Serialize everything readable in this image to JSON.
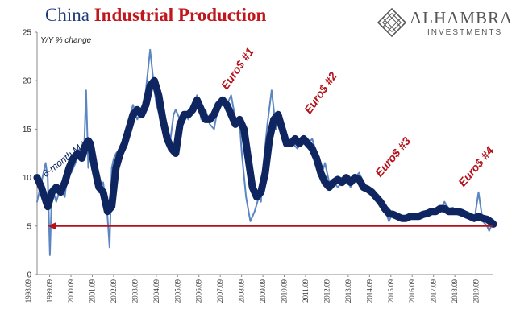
{
  "header": {
    "title_part1": "China",
    "title_part2": "Industrial Production"
  },
  "logo": {
    "name": "ALHAMBRA",
    "subtitle": "INVESTMENTS",
    "icon": "diamond-lattice-icon"
  },
  "chart_data": {
    "type": "line",
    "title": "China Industrial Production",
    "ylabel": "Y/Y % change",
    "xlabel": "",
    "ylim": [
      0,
      25
    ],
    "yticks": [
      0,
      5,
      10,
      15,
      20,
      25
    ],
    "xlim": [
      1998.5,
      2019.9
    ],
    "xtick_labels": [
      "1998.09",
      "1999.09",
      "2000.09",
      "2001.09",
      "2002.09",
      "2003.09",
      "2004.09",
      "2005.09",
      "2006.09",
      "2007.09",
      "2008.09",
      "2009.09",
      "2010.09",
      "2011.09",
      "2012.09",
      "2013.09",
      "2014.09",
      "2015.09",
      "2016.09",
      "2017.09",
      "2018.09",
      "2019.09"
    ],
    "grid": false,
    "colors": {
      "monthly": "#5b86c2",
      "ma": "#0e2560",
      "reference": "#b3121a"
    },
    "series": [
      {
        "key": "monthly",
        "x": [
          1998.5,
          1998.7,
          1998.9,
          1999.0,
          1999.1,
          1999.2,
          1999.4,
          1999.6,
          1999.8,
          2000.0,
          2000.1,
          2000.3,
          2000.5,
          2000.7,
          2000.8,
          2000.9,
          2001.0,
          2001.2,
          2001.4,
          2001.6,
          2001.8,
          2001.9,
          2002.0,
          2002.1,
          2002.2,
          2002.4,
          2002.6,
          2002.8,
          2003.0,
          2003.2,
          2003.4,
          2003.6,
          2003.8,
          2004.0,
          2004.1,
          2004.3,
          2004.5,
          2004.7,
          2004.9,
          2005.0,
          2005.2,
          2005.4,
          2005.6,
          2005.8,
          2006.0,
          2006.2,
          2006.4,
          2006.6,
          2006.8,
          2007.0,
          2007.2,
          2007.4,
          2007.6,
          2007.8,
          2008.0,
          2008.1,
          2008.3,
          2008.5,
          2008.7,
          2008.9,
          2009.0,
          2009.1,
          2009.3,
          2009.5,
          2009.7,
          2009.9,
          2010.0,
          2010.1,
          2010.3,
          2010.5,
          2010.7,
          2010.9,
          2011.0,
          2011.2,
          2011.4,
          2011.6,
          2011.8,
          2012.0,
          2012.2,
          2012.4,
          2012.6,
          2012.8,
          2013.0,
          2013.2,
          2013.4,
          2013.6,
          2013.8,
          2014.0,
          2014.2,
          2014.4,
          2014.6,
          2014.8,
          2015.0,
          2015.2,
          2015.4,
          2015.6,
          2015.8,
          2016.0,
          2016.2,
          2016.4,
          2016.6,
          2016.8,
          2017.0,
          2017.2,
          2017.4,
          2017.6,
          2017.8,
          2018.0,
          2018.2,
          2018.4,
          2018.6,
          2018.8,
          2019.0,
          2019.2,
          2019.4,
          2019.6,
          2019.7,
          2019.9
        ],
        "values": [
          7.5,
          9.5,
          11.5,
          10.0,
          2.0,
          9.0,
          7.5,
          9.0,
          8.0,
          12.0,
          10.5,
          11.5,
          13.0,
          12.5,
          19.0,
          11.0,
          13.5,
          10.0,
          8.5,
          9.5,
          6.0,
          2.8,
          11.0,
          12.0,
          12.5,
          13.0,
          14.0,
          16.0,
          17.5,
          16.0,
          17.0,
          19.0,
          23.2,
          19.0,
          17.5,
          16.0,
          15.5,
          13.0,
          16.5,
          17.0,
          16.0,
          16.5,
          16.0,
          17.5,
          18.5,
          16.0,
          17.0,
          15.5,
          15.0,
          17.5,
          18.0,
          17.5,
          18.5,
          16.0,
          15.5,
          12.5,
          8.0,
          5.5,
          6.5,
          8.0,
          7.5,
          11.0,
          15.5,
          19.0,
          15.0,
          16.5,
          15.0,
          13.5,
          14.0,
          13.5,
          13.0,
          13.5,
          14.0,
          13.5,
          14.0,
          12.5,
          10.0,
          11.5,
          9.5,
          9.5,
          9.0,
          9.5,
          10.0,
          9.0,
          10.0,
          10.5,
          9.5,
          9.0,
          8.5,
          8.0,
          7.0,
          6.8,
          5.5,
          6.5,
          6.0,
          5.6,
          6.0,
          6.2,
          6.0,
          5.8,
          6.3,
          6.5,
          6.8,
          6.7,
          6.5,
          7.5,
          6.8,
          6.9,
          6.3,
          6.0,
          6.5,
          6.0,
          5.5,
          8.5,
          5.5,
          5.0,
          4.5,
          5.5
        ]
      },
      {
        "key": "ma",
        "x": [
          1998.5,
          1998.7,
          1999.0,
          1999.2,
          1999.4,
          1999.6,
          1999.8,
          2000.0,
          2000.2,
          2000.4,
          2000.6,
          2000.8,
          2000.9,
          2001.0,
          2001.2,
          2001.4,
          2001.6,
          2001.8,
          2002.0,
          2002.2,
          2002.4,
          2002.6,
          2002.8,
          2003.0,
          2003.2,
          2003.4,
          2003.6,
          2003.8,
          2004.0,
          2004.2,
          2004.4,
          2004.6,
          2004.8,
          2005.0,
          2005.2,
          2005.4,
          2005.6,
          2005.8,
          2006.0,
          2006.2,
          2006.4,
          2006.6,
          2006.8,
          2007.0,
          2007.2,
          2007.4,
          2007.6,
          2007.8,
          2008.0,
          2008.2,
          2008.4,
          2008.6,
          2008.8,
          2009.0,
          2009.2,
          2009.4,
          2009.6,
          2009.8,
          2010.0,
          2010.2,
          2010.4,
          2010.6,
          2010.8,
          2011.0,
          2011.2,
          2011.4,
          2011.6,
          2011.8,
          2012.0,
          2012.2,
          2012.4,
          2012.6,
          2012.8,
          2013.0,
          2013.2,
          2013.4,
          2013.6,
          2013.8,
          2014.0,
          2014.2,
          2014.4,
          2014.6,
          2014.8,
          2015.0,
          2015.2,
          2015.4,
          2015.6,
          2015.8,
          2016.0,
          2016.2,
          2016.4,
          2016.6,
          2016.8,
          2017.0,
          2017.2,
          2017.4,
          2017.6,
          2017.8,
          2018.0,
          2018.2,
          2018.4,
          2018.6,
          2018.8,
          2019.0,
          2019.2,
          2019.4,
          2019.6,
          2019.8,
          2019.9
        ],
        "values": [
          10.0,
          9.0,
          7.0,
          8.5,
          9.0,
          8.5,
          9.5,
          11.0,
          12.0,
          12.5,
          12.0,
          13.5,
          13.8,
          13.5,
          11.0,
          9.0,
          8.5,
          6.5,
          7.0,
          11.0,
          12.5,
          13.5,
          15.0,
          16.5,
          17.0,
          16.5,
          17.5,
          19.5,
          20.0,
          18.5,
          16.0,
          14.0,
          13.0,
          12.5,
          15.5,
          16.5,
          16.5,
          17.0,
          18.0,
          17.0,
          16.0,
          16.0,
          16.5,
          17.5,
          18.0,
          17.5,
          16.5,
          15.5,
          16.0,
          15.0,
          12.0,
          9.0,
          8.0,
          8.5,
          10.5,
          14.0,
          16.0,
          16.5,
          15.0,
          13.5,
          13.5,
          14.0,
          13.5,
          14.0,
          13.5,
          13.0,
          12.0,
          10.5,
          9.5,
          9.0,
          9.5,
          9.8,
          9.5,
          10.0,
          9.5,
          10.0,
          9.8,
          9.0,
          8.8,
          8.5,
          8.0,
          7.5,
          6.8,
          6.3,
          6.2,
          6.0,
          5.8,
          5.8,
          6.0,
          6.0,
          6.0,
          6.2,
          6.3,
          6.5,
          6.5,
          6.8,
          6.8,
          6.5,
          6.5,
          6.5,
          6.4,
          6.2,
          6.0,
          5.8,
          6.0,
          5.8,
          5.7,
          5.4,
          5.2
        ]
      }
    ],
    "reference_line": {
      "y": 5,
      "x_from": 2019.9,
      "x_to": 1999.0
    },
    "annotations": [
      {
        "text": "6-month MA",
        "x": 1998.9,
        "y": 10.0,
        "rotate": -38,
        "style": "blue"
      },
      {
        "text": "Euro$ #1",
        "x": 2007.4,
        "y": 19.0,
        "rotate": -55,
        "style": "red"
      },
      {
        "text": "Euro$ #2",
        "x": 2011.3,
        "y": 16.5,
        "rotate": -55,
        "style": "red"
      },
      {
        "text": "Euro$ #3",
        "x": 2014.6,
        "y": 10.0,
        "rotate": -50,
        "style": "red"
      },
      {
        "text": "Euro$ #4",
        "x": 2018.5,
        "y": 9.0,
        "rotate": -50,
        "style": "red"
      }
    ]
  }
}
